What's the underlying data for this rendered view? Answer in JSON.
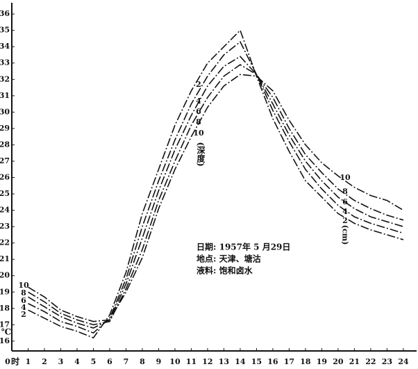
{
  "chart_data": {
    "type": "line",
    "x_unit": "时",
    "y_unit": "℃",
    "x": [
      1,
      2,
      3,
      4,
      5,
      6,
      7,
      8,
      9,
      10,
      11,
      12,
      13,
      14,
      15,
      16,
      17,
      18,
      19,
      20,
      21,
      22,
      23,
      24
    ],
    "xlim": [
      0,
      24.6
    ],
    "xticks": [
      0,
      1,
      2,
      3,
      4,
      5,
      6,
      7,
      8,
      9,
      10,
      11,
      12,
      13,
      14,
      15,
      16,
      17,
      18,
      19,
      20,
      21,
      22,
      23,
      24
    ],
    "ylim": [
      15.4,
      36.6
    ],
    "yticks": [
      16,
      17,
      18,
      19,
      20,
      21,
      22,
      23,
      24,
      25,
      26,
      27,
      28,
      29,
      30,
      31,
      32,
      33,
      34,
      35,
      36
    ],
    "grid": false,
    "series": [
      {
        "name": "2",
        "color": "#111111",
        "values": [
          17.9,
          17.4,
          16.9,
          16.6,
          16.2,
          17.6,
          20.2,
          23.8,
          26.5,
          29.2,
          31.3,
          33.0,
          34.0,
          35.0,
          32.2,
          29.6,
          27.6,
          25.8,
          24.8,
          23.8,
          23.2,
          22.8,
          22.5,
          22.2
        ]
      },
      {
        "name": "4",
        "color": "#111111",
        "values": [
          18.3,
          17.8,
          17.2,
          16.9,
          16.5,
          17.4,
          19.8,
          23.0,
          25.8,
          28.3,
          30.5,
          32.2,
          33.5,
          34.3,
          32.3,
          30.1,
          28.2,
          26.5,
          25.3,
          24.3,
          23.6,
          23.2,
          22.9,
          22.6
        ]
      },
      {
        "name": "6",
        "color": "#111111",
        "values": [
          18.7,
          18.1,
          17.5,
          17.1,
          16.8,
          17.3,
          19.5,
          22.3,
          25.2,
          27.7,
          29.8,
          31.6,
          32.8,
          33.4,
          32.3,
          30.5,
          28.6,
          27.0,
          25.8,
          24.8,
          24.1,
          23.6,
          23.3,
          23.0
        ]
      },
      {
        "name": "8",
        "color": "#111111",
        "values": [
          19.0,
          18.4,
          17.7,
          17.3,
          17.0,
          17.2,
          19.2,
          21.6,
          24.6,
          27.0,
          29.2,
          30.9,
          32.2,
          32.9,
          32.3,
          30.9,
          29.0,
          27.4,
          26.3,
          25.3,
          24.6,
          24.1,
          23.7,
          23.4
        ]
      },
      {
        "name": "10",
        "color": "#111111",
        "values": [
          19.3,
          18.7,
          17.9,
          17.5,
          17.2,
          17.3,
          19.0,
          21.1,
          24.1,
          26.5,
          28.5,
          30.3,
          31.6,
          32.3,
          32.2,
          31.3,
          29.5,
          28.0,
          26.9,
          26.1,
          25.4,
          24.9,
          24.6,
          24.0
        ]
      }
    ],
    "annotations": [
      "(深度)",
      "(cm)"
    ],
    "notes": [
      "日期: 1957年 5 月29日",
      "地点: 天津、塘沽",
      "液料: 饱和卤水"
    ]
  }
}
